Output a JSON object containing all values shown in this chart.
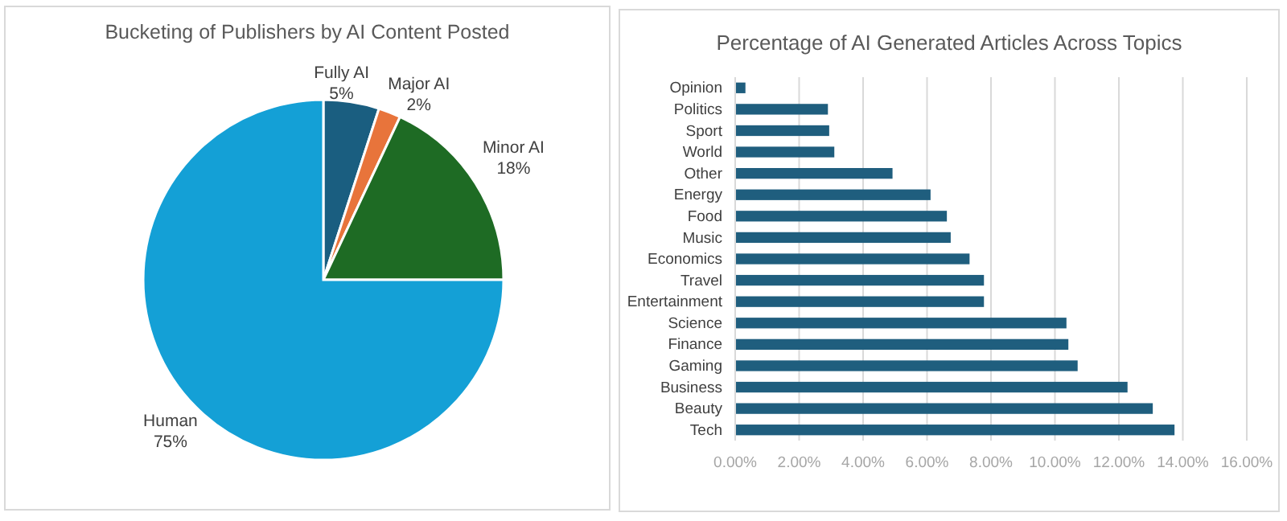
{
  "chart_data": [
    {
      "type": "pie",
      "title": "Bucketing of Publishers by AI Content Posted",
      "categories": [
        "Fully AI",
        "Major AI",
        "Minor AI",
        "Human"
      ],
      "values": [
        5,
        2,
        18,
        75
      ],
      "colors": [
        "#1a5e80",
        "#e8743b",
        "#1e6b24",
        "#14a0d6"
      ],
      "value_labels": [
        "5%",
        "2%",
        "18%",
        "75%"
      ]
    },
    {
      "type": "bar",
      "title": "Percentage of AI Generated Articles Across Topics",
      "orientation": "horizontal",
      "categories": [
        "Opinion",
        "Politics",
        "Sport",
        "World",
        "Other",
        "Energy",
        "Food",
        "Music",
        "Economics",
        "Travel",
        "Entertainment",
        "Science",
        "Finance",
        "Gaming",
        "Business",
        "Beauty",
        "Tech"
      ],
      "values": [
        0.32,
        2.9,
        2.94,
        3.1,
        4.92,
        6.11,
        6.62,
        6.74,
        7.33,
        7.78,
        7.78,
        10.36,
        10.42,
        10.71,
        12.27,
        13.06,
        13.74
      ],
      "color": "#1f5e7e",
      "xlim": [
        0,
        16
      ],
      "xticks": [
        {
          "value": 0,
          "label": "0.00%"
        },
        {
          "value": 2,
          "label": "2.00%"
        },
        {
          "value": 4,
          "label": "4.00%"
        },
        {
          "value": 6,
          "label": "6.00%"
        },
        {
          "value": 8,
          "label": "8.00%"
        },
        {
          "value": 10,
          "label": "10.00%"
        },
        {
          "value": 12,
          "label": "12.00%"
        },
        {
          "value": 14,
          "label": "14.00%"
        },
        {
          "value": 16,
          "label": "16.00%"
        }
      ],
      "grid": "x"
    }
  ]
}
